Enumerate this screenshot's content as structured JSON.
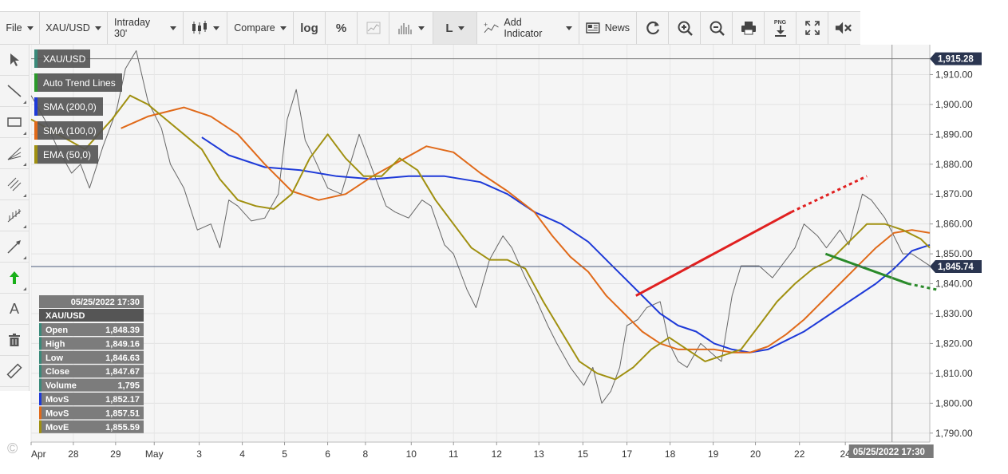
{
  "toolbar": {
    "file": "File",
    "symbol": "XAU/USD",
    "interval": "Intraday 30'",
    "compare": "Compare",
    "log": "log",
    "percent": "%",
    "line_tool": "L",
    "add_indicator": "Add Indicator",
    "news": "News",
    "png": "PNG"
  },
  "legend": [
    {
      "label": "XAU/USD",
      "color": "#3a8a7a"
    },
    {
      "label": "Auto Trend Lines",
      "color": "#2a9a2a"
    },
    {
      "label": "SMA (200,0)",
      "color": "#1e3ad8"
    },
    {
      "label": "SMA (100,0)",
      "color": "#e06a1a"
    },
    {
      "label": "EMA (50,0)",
      "color": "#a09010"
    }
  ],
  "info_panel": {
    "datetime": "05/25/2022 17:30",
    "symbol": "XAU/USD",
    "rows": [
      {
        "label": "Open",
        "value": "1,848.39",
        "color": "#3a8a7a"
      },
      {
        "label": "High",
        "value": "1,849.16",
        "color": "#3a8a7a"
      },
      {
        "label": "Low",
        "value": "1,846.63",
        "color": "#3a8a7a"
      },
      {
        "label": "Close",
        "value": "1,847.67",
        "color": "#3a8a7a"
      },
      {
        "label": "Volume",
        "value": "1,795",
        "color": "#3a8a7a"
      },
      {
        "label": "MovS",
        "value": "1,852.17",
        "color": "#1e3ad8"
      },
      {
        "label": "MovS",
        "value": "1,857.51",
        "color": "#e06a1a"
      },
      {
        "label": "MovE",
        "value": "1,855.59",
        "color": "#a09010"
      }
    ]
  },
  "price_labels": {
    "top": "1,915.28",
    "current": "1,845.74"
  },
  "crosshair_date": "05/25/2022 17:30",
  "copyright": "©",
  "chart_data": {
    "type": "line",
    "title": "",
    "y_ticks": [
      "1,910.00",
      "1,900.00",
      "1,890.00",
      "1,880.00",
      "1,870.00",
      "1,860.00",
      "1,850.00",
      "1,840.00",
      "1,830.00",
      "1,820.00",
      "1,810.00",
      "1,800.00",
      "1,790.00"
    ],
    "y_tick_values": [
      1910,
      1900,
      1890,
      1880,
      1870,
      1860,
      1850,
      1840,
      1830,
      1820,
      1810,
      1800,
      1790
    ],
    "x_ticks": [
      "Apr",
      "28",
      "29",
      "May",
      "3",
      "4",
      "5",
      "6",
      "8",
      "10",
      "11",
      "12",
      "13",
      "15",
      "17",
      "18",
      "19",
      "20",
      "22",
      "24"
    ],
    "ylim": [
      1787,
      1920
    ],
    "xlim": [
      0,
      100
    ],
    "x_tick_pos": [
      0,
      4.7,
      9.4,
      13.7,
      18.7,
      23.5,
      28.2,
      33.0,
      37.2,
      42.3,
      47.0,
      51.8,
      56.5,
      61.4,
      66.3,
      71.1,
      75.9,
      80.6,
      85.5,
      90.6
    ],
    "grid": true,
    "series": [
      {
        "name": "XAU/USD",
        "color": "#4d4d4d",
        "x": [
          0,
          1.5,
          3,
          4.5,
          5.5,
          6.5,
          8,
          9.5,
          10.5,
          11.7,
          13,
          14.5,
          15.5,
          17,
          18.5,
          20,
          21,
          22,
          23,
          24.5,
          26,
          27.5,
          28.5,
          29.5,
          30.5,
          31.5,
          33,
          34.5,
          35.5,
          36.5,
          38,
          39.5,
          40.5,
          42,
          43.5,
          44.5,
          46,
          47,
          48.5,
          49.5,
          51,
          52.5,
          53.5,
          55,
          56,
          57.5,
          58.5,
          60,
          61.5,
          62.5,
          63.5,
          64.5,
          65.5,
          66.3,
          67.5,
          68.5,
          70,
          71,
          72,
          73,
          74.5,
          76,
          76.8,
          78,
          79,
          81,
          82.5,
          83.5,
          85,
          86,
          87.5,
          88.5,
          90,
          91,
          92.5,
          93.5,
          95,
          96,
          97,
          98,
          99,
          100
        ],
        "y": [
          1903,
          1895,
          1885,
          1877,
          1880,
          1872,
          1886,
          1898,
          1912,
          1918,
          1901,
          1892,
          1880,
          1872,
          1858,
          1860,
          1852,
          1868,
          1866,
          1861,
          1862,
          1870,
          1895,
          1905,
          1888,
          1882,
          1872,
          1870,
          1880,
          1890,
          1878,
          1866,
          1864,
          1862,
          1868,
          1866,
          1853,
          1850,
          1838,
          1832,
          1848,
          1856,
          1852,
          1842,
          1836,
          1826,
          1820,
          1812,
          1806,
          1812,
          1800,
          1804,
          1812,
          1826,
          1828,
          1832,
          1834,
          1820,
          1814,
          1812,
          1820,
          1816,
          1814,
          1836,
          1846,
          1846,
          1842,
          1846,
          1852,
          1860,
          1856,
          1852,
          1858,
          1853,
          1870,
          1868,
          1862,
          1856,
          1850,
          1850,
          1848,
          1846
        ]
      },
      {
        "name": "SMA (200,0)",
        "color": "#1e3ad8",
        "x": [
          19,
          22,
          26,
          30,
          34,
          38,
          42,
          46,
          50,
          53,
          56,
          59,
          62,
          64,
          66,
          68,
          70,
          72,
          74,
          76,
          78,
          80,
          82,
          84,
          86,
          88,
          90,
          92,
          94,
          96,
          98,
          100
        ],
        "y": [
          1889,
          1883,
          1879,
          1878,
          1876,
          1875,
          1876,
          1876,
          1874,
          1870,
          1864,
          1860,
          1854,
          1848,
          1842,
          1836,
          1830,
          1826,
          1824,
          1820,
          1818,
          1817,
          1818,
          1821,
          1824,
          1828,
          1832,
          1836,
          1840,
          1845,
          1851,
          1853
        ]
      },
      {
        "name": "SMA (100,0)",
        "color": "#e06a1a",
        "x": [
          10,
          13,
          17,
          20,
          23,
          26,
          29,
          32,
          35,
          38,
          41,
          44,
          47,
          50,
          53,
          56,
          58,
          60,
          62,
          64,
          66,
          68,
          70,
          72,
          74,
          76,
          78,
          80,
          82,
          84,
          86,
          88,
          90,
          92,
          94,
          96,
          98,
          100
        ],
        "y": [
          1892,
          1896,
          1899,
          1896,
          1890,
          1880,
          1871,
          1868,
          1870,
          1876,
          1881,
          1886,
          1884,
          1877,
          1871,
          1864,
          1856,
          1849,
          1844,
          1836,
          1830,
          1824,
          1820,
          1818,
          1818,
          1818,
          1817,
          1817,
          1819,
          1823,
          1828,
          1834,
          1840,
          1846,
          1852,
          1857,
          1858,
          1857
        ]
      },
      {
        "name": "EMA (50,0)",
        "color": "#a09010",
        "x": [
          0,
          3,
          6,
          9,
          11,
          13,
          15,
          17,
          19,
          21,
          23,
          25,
          27,
          29,
          31,
          33,
          35,
          37,
          39,
          41,
          43,
          45,
          47,
          49,
          51,
          53,
          55,
          57,
          59,
          61,
          63,
          65,
          67,
          69,
          71,
          73,
          75,
          77,
          79,
          81,
          83,
          85,
          87,
          89,
          91,
          93,
          95,
          97,
          99,
          100
        ],
        "y": [
          1895,
          1890,
          1885,
          1895,
          1903,
          1900,
          1895,
          1890,
          1885,
          1875,
          1868,
          1866,
          1865,
          1870,
          1882,
          1890,
          1882,
          1876,
          1876,
          1882,
          1878,
          1868,
          1860,
          1852,
          1848,
          1848,
          1845,
          1834,
          1824,
          1814,
          1810,
          1808,
          1812,
          1818,
          1822,
          1818,
          1814,
          1816,
          1818,
          1826,
          1834,
          1840,
          1845,
          1848,
          1854,
          1860,
          1860,
          1858,
          1855,
          1852
        ]
      }
    ],
    "trend_lines": [
      {
        "color": "#e02020",
        "solid": [
          [
            67.3,
            1836
          ],
          [
            84.6,
            1864
          ]
        ],
        "dashed": [
          [
            84.6,
            1864
          ],
          [
            93,
            1876
          ]
        ]
      },
      {
        "color": "#2a8a2a",
        "solid": [
          [
            88.4,
            1850
          ],
          [
            97.6,
            1840
          ]
        ],
        "dashed": [
          [
            97.6,
            1840
          ],
          [
            100.8,
            1838
          ]
        ]
      }
    ],
    "crosshair": {
      "x": 95.8,
      "price": 1845.74
    }
  }
}
